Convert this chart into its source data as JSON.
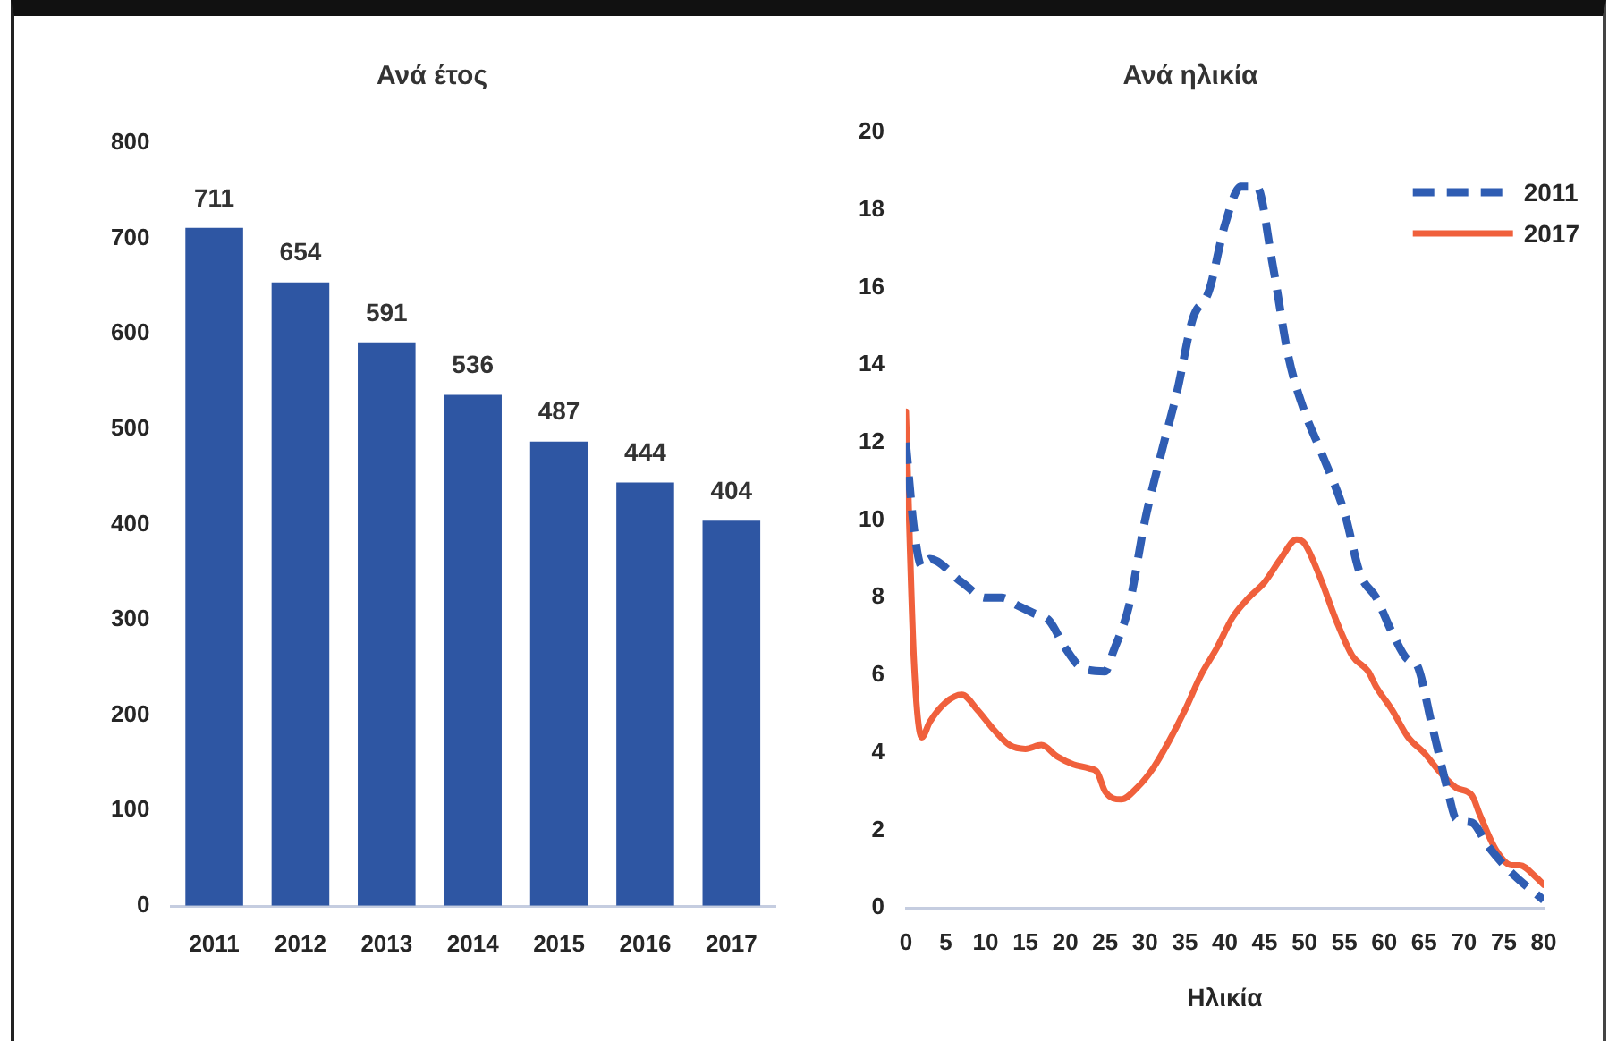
{
  "chart_data": [
    {
      "type": "bar",
      "title": "Ανά έτος",
      "categories": [
        "2011",
        "2012",
        "2013",
        "2014",
        "2015",
        "2016",
        "2017"
      ],
      "values": [
        711,
        654,
        591,
        536,
        487,
        444,
        404
      ],
      "color": "#2e56a3",
      "data_labels": true,
      "ylim": [
        0,
        800
      ],
      "yticks": [
        0,
        100,
        200,
        300,
        400,
        500,
        600,
        700,
        800
      ]
    },
    {
      "type": "line",
      "title": "Ανά ηλικία",
      "xlabel": "Ηλικία",
      "xlim": [
        0,
        80
      ],
      "xticks": [
        0,
        5,
        10,
        15,
        20,
        25,
        30,
        35,
        40,
        45,
        50,
        55,
        60,
        65,
        70,
        75,
        80
      ],
      "ylim": [
        0,
        20
      ],
      "yticks": [
        0,
        2,
        4,
        6,
        8,
        10,
        12,
        14,
        16,
        18,
        20
      ],
      "legend": "top right",
      "series": [
        {
          "name": "2011",
          "color": "#2f5db3",
          "line_style": "dashed",
          "x": [
            0,
            1,
            2,
            3,
            7,
            10,
            12,
            14,
            16,
            18,
            20,
            22,
            25,
            26,
            28,
            30,
            32,
            34,
            36,
            38,
            40,
            42,
            44,
            46,
            48,
            50,
            52,
            55,
            57,
            59,
            61,
            63,
            64,
            66,
            68,
            69,
            71,
            73,
            76,
            80
          ],
          "values": [
            12.0,
            9.8,
            8.8,
            9.0,
            8.4,
            8.0,
            8.0,
            7.8,
            7.6,
            7.4,
            6.7,
            6.2,
            6.1,
            6.6,
            7.8,
            10.0,
            11.7,
            13.3,
            15.2,
            15.9,
            17.6,
            18.6,
            18.6,
            16.6,
            14.2,
            12.8,
            11.8,
            10.2,
            8.6,
            8.0,
            7.1,
            6.4,
            6.3,
            4.7,
            3.0,
            2.3,
            2.2,
            1.6,
            0.9,
            0.2
          ]
        },
        {
          "name": "2017",
          "color": "#f0603c",
          "line_style": "solid",
          "x": [
            0,
            1,
            2,
            3,
            5,
            7,
            9,
            11,
            13,
            15,
            17,
            19,
            21,
            23,
            24,
            25,
            27,
            29,
            31,
            33,
            35,
            37,
            39,
            41,
            43,
            45,
            47,
            49,
            50,
            52,
            54,
            56,
            58,
            59,
            61,
            63,
            65,
            67,
            69,
            71,
            72,
            74,
            76,
            77,
            79,
            80
          ],
          "values": [
            12.8,
            6.4,
            4.4,
            4.8,
            5.3,
            5.5,
            5.1,
            4.6,
            4.2,
            4.1,
            4.2,
            3.9,
            3.7,
            3.6,
            3.5,
            3.0,
            2.8,
            3.1,
            3.6,
            4.3,
            5.1,
            6.0,
            6.7,
            7.5,
            8.0,
            8.4,
            9.0,
            9.5,
            9.4,
            8.5,
            7.4,
            6.5,
            6.1,
            5.7,
            5.1,
            4.4,
            4.0,
            3.5,
            3.1,
            2.9,
            2.4,
            1.5,
            1.1,
            1.1,
            0.8,
            0.6
          ]
        }
      ]
    }
  ]
}
